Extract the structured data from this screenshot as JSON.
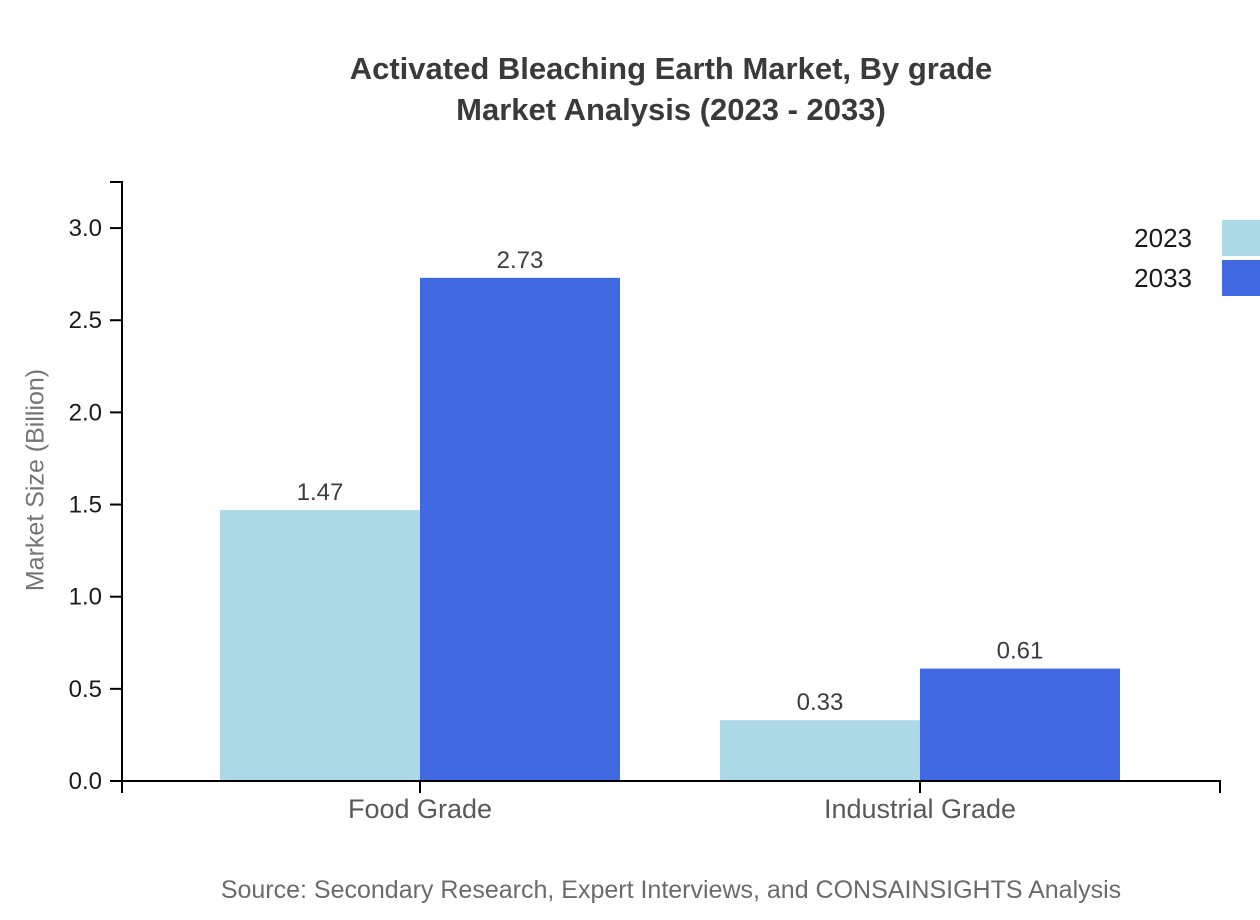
{
  "chart_data": {
    "type": "bar",
    "title": "Activated Bleaching Earth Market, By grade Market Analysis (2023 - 2033)",
    "title_lines": [
      "Activated Bleaching Earth Market, By grade",
      "Market Analysis (2023 - 2033)"
    ],
    "categories": [
      "Food Grade",
      "Industrial Grade"
    ],
    "series": [
      {
        "name": "2023",
        "color": "#ADD8E6",
        "values": [
          1.47,
          0.33
        ]
      },
      {
        "name": "2033",
        "color": "#4169E1",
        "values": [
          2.73,
          0.61
        ]
      }
    ],
    "xlabel": "",
    "ylabel": "Market Size (Billion)",
    "ylim": [
      0,
      3.25
    ],
    "yticks": [
      0,
      0.5,
      1,
      1.5,
      2,
      2.5,
      3
    ],
    "grid": false,
    "legend_position": "top-right",
    "value_labels": true
  },
  "source_note": "Source: Secondary Research, Expert Interviews, and CONSAINSIGHTS Analysis",
  "colors": {
    "background": "#ffffff",
    "title_text": "#3a3a3a",
    "axis_line": "#000000",
    "tick_label": "#1a1a1a",
    "category_label": "#595959",
    "value_label": "#3d3d3d",
    "axis_title": "#757575",
    "source_text": "#6b6b6b"
  }
}
